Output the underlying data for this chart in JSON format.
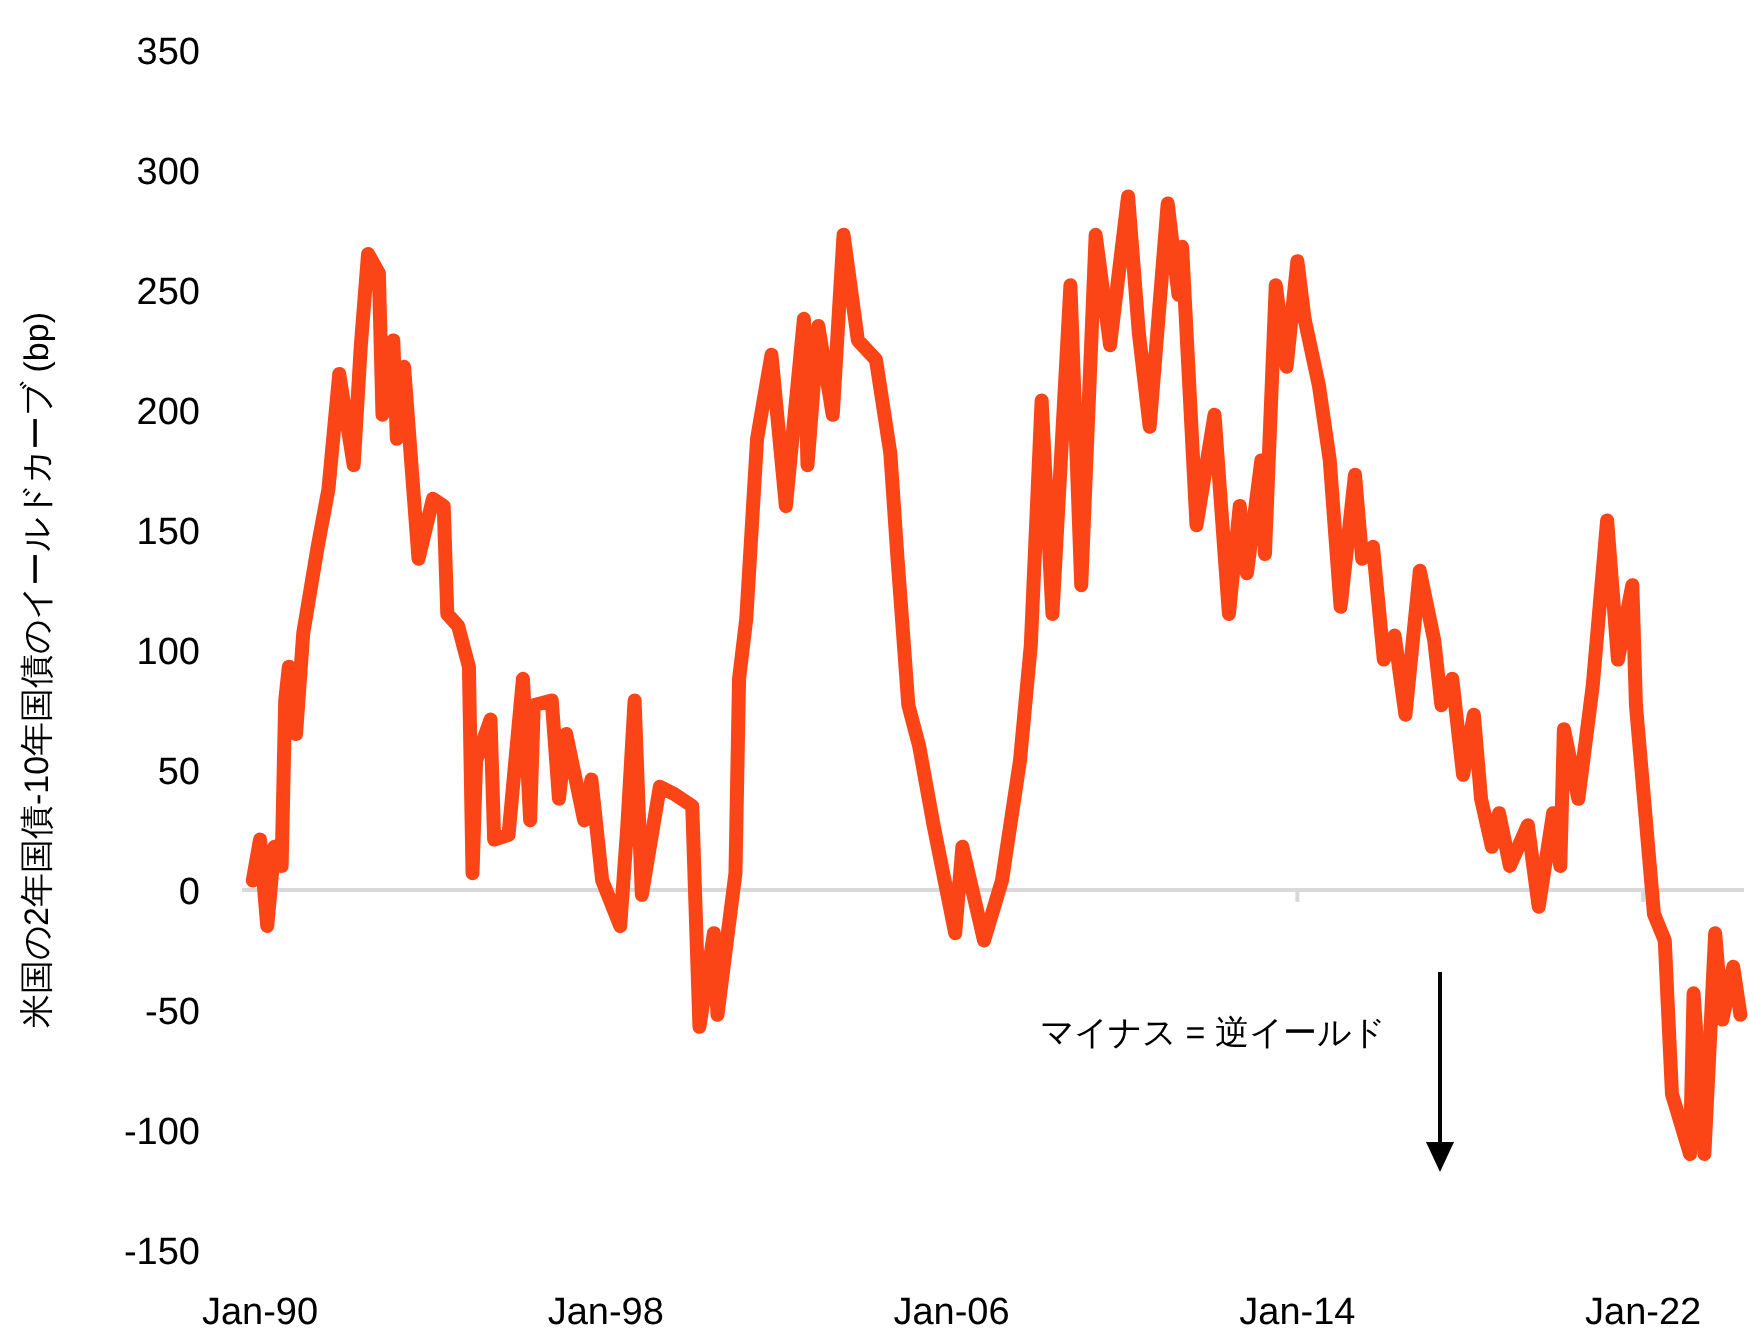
{
  "chart_data": {
    "type": "line",
    "ylabel": "米国の2年国債-10年国債のイールドカーブ (bp)",
    "annotations": [
      "マイナス = 逆イールド"
    ],
    "xlim": [
      "1989-08",
      "2024-05"
    ],
    "xticks": [
      {
        "value": "1990-01",
        "label": "Jan-90"
      },
      {
        "value": "1998-01",
        "label": "Jan-98"
      },
      {
        "value": "2006-01",
        "label": "Jan-06"
      },
      {
        "value": "2014-01",
        "label": "Jan-14"
      },
      {
        "value": "2022-01",
        "label": "Jan-22"
      }
    ],
    "ylim": [
      -150,
      350
    ],
    "yticks": [
      -150,
      -100,
      -50,
      0,
      50,
      100,
      150,
      200,
      250,
      300,
      350
    ],
    "series": [
      {
        "color": "#fc4516",
        "x": [
          "1989-11",
          "1990-01",
          "1990-03",
          "1990-05",
          "1990-07",
          "1990-08",
          "1990-09",
          "1990-11",
          "1991-01",
          "1991-05",
          "1991-08",
          "1991-11",
          "1992-03",
          "1992-05",
          "1992-07",
          "1992-10",
          "1992-11",
          "1993-02",
          "1993-03",
          "1993-05",
          "1993-09",
          "1994-01",
          "1994-04",
          "1994-05",
          "1994-08",
          "1994-11",
          "1994-12",
          "1995-01",
          "1995-05",
          "1995-06",
          "1995-10",
          "1996-02",
          "1996-04",
          "1996-05",
          "1996-10",
          "1996-12",
          "1997-02",
          "1997-07",
          "1997-09",
          "1997-12",
          "1998-05",
          "1998-07",
          "1998-09",
          "1998-11",
          "1999-04",
          "1999-08",
          "2000-01",
          "2000-03",
          "2000-07",
          "2000-08",
          "2001-01",
          "2001-02",
          "2001-04",
          "2001-07",
          "2001-11",
          "2002-03",
          "2002-08",
          "2002-09",
          "2002-12",
          "2003-04",
          "2003-07",
          "2003-11",
          "2004-04",
          "2004-08",
          "2004-10",
          "2005-01",
          "2005-04",
          "2005-08",
          "2006-02",
          "2006-04",
          "2006-10",
          "2007-03",
          "2007-08",
          "2007-11",
          "2008-02",
          "2008-05",
          "2008-10",
          "2009-01",
          "2009-05",
          "2009-09",
          "2010-02",
          "2010-05",
          "2010-08",
          "2011-01",
          "2011-04",
          "2011-05",
          "2011-09",
          "2012-02",
          "2012-06",
          "2012-09",
          "2012-11",
          "2013-03",
          "2013-04",
          "2013-07",
          "2013-10",
          "2014-01",
          "2014-03",
          "2014-07",
          "2014-10",
          "2015-01",
          "2015-05",
          "2015-07",
          "2015-10",
          "2016-01",
          "2016-04",
          "2016-07",
          "2016-11",
          "2017-03",
          "2017-05",
          "2017-08",
          "2017-11",
          "2018-02",
          "2018-04",
          "2018-07",
          "2018-09",
          "2018-12",
          "2019-05",
          "2019-08",
          "2019-12",
          "2020-02",
          "2020-03",
          "2020-07",
          "2020-11",
          "2021-03",
          "2021-06",
          "2021-10",
          "2021-11",
          "2022-04",
          "2022-07",
          "2022-09",
          "2023-02",
          "2023-03",
          "2023-06",
          "2023-09",
          "2023-11",
          "2024-02",
          "2024-04"
        ],
        "values": [
          4,
          21,
          -15,
          18,
          10,
          79,
          93,
          65,
          107,
          143,
          167,
          215,
          177,
          227,
          265,
          257,
          198,
          229,
          188,
          218,
          138,
          163,
          160,
          115,
          110,
          93,
          7,
          54,
          71,
          21,
          23,
          88,
          29,
          77,
          79,
          38,
          65,
          29,
          46,
          4,
          -15,
          27,
          79,
          -2,
          43,
          40,
          35,
          -57,
          -18,
          -52,
          7,
          88,
          113,
          188,
          223,
          160,
          238,
          177,
          235,
          198,
          273,
          229,
          221,
          182,
          138,
          77,
          60,
          27,
          -18,
          18,
          -21,
          4,
          54,
          102,
          204,
          115,
          252,
          127,
          273,
          227,
          289,
          232,
          193,
          286,
          248,
          268,
          152,
          198,
          115,
          160,
          132,
          179,
          140,
          252,
          218,
          262,
          238,
          210,
          179,
          118,
          173,
          138,
          143,
          96,
          106,
          73,
          133,
          104,
          77,
          88,
          48,
          73,
          38,
          18,
          32,
          10,
          27,
          -7,
          32,
          10,
          67,
          38,
          85,
          154,
          96,
          127,
          77,
          -10,
          -21,
          -85,
          -110,
          -43,
          -110,
          -18,
          -54,
          -32,
          -52
        ]
      }
    ]
  }
}
